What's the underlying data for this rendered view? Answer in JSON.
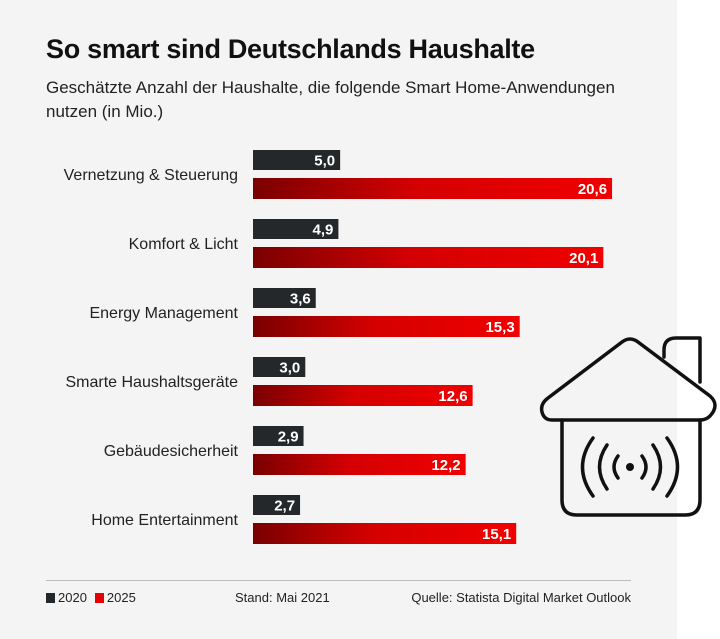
{
  "title": "So smart sind Deutschlands Haushalte",
  "subtitle": "Geschätzte Anzahl der Haushalte, die folgende Smart Home-Anwendungen nutzen (in Mio.)",
  "footer": {
    "stand": "Stand: Mai 2021",
    "source": "Quelle: Statista Digital Market Outlook"
  },
  "icon": "smart-home-wifi-house-icon",
  "chart_data": {
    "type": "bar",
    "orientation": "horizontal",
    "categories": [
      "Vernetzung & Steuerung",
      "Komfort & Licht",
      "Energy Management",
      "Smarte Haushaltsgeräte",
      "Gebäudesicherheit",
      "Home Entertainment"
    ],
    "series": [
      {
        "name": "2020",
        "values": [
          5.0,
          4.9,
          3.6,
          3.0,
          2.9,
          2.7
        ],
        "labels": [
          "5,0",
          "4,9",
          "3,6",
          "3,0",
          "2,9",
          "2,7"
        ],
        "color": "#25282b"
      },
      {
        "name": "2025",
        "values": [
          20.6,
          20.1,
          15.3,
          12.6,
          12.2,
          15.1
        ],
        "labels": [
          "20,6",
          "20,1",
          "15,3",
          "12,6",
          "12,2",
          "15,1"
        ],
        "color": "#e60000"
      }
    ],
    "legend": "bottom-left",
    "grid": false
  }
}
